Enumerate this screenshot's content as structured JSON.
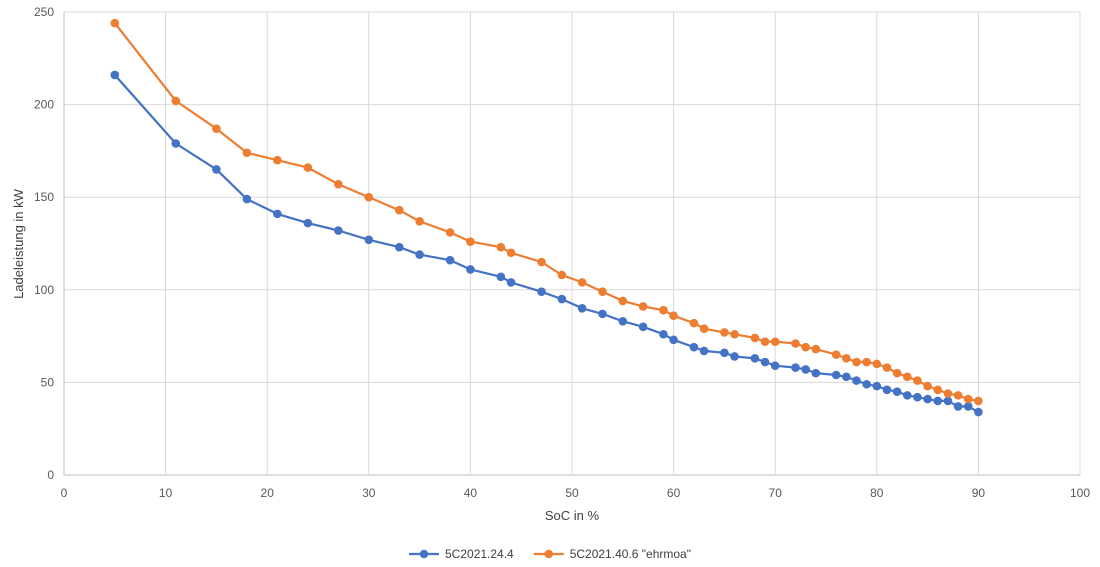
{
  "colors": {
    "series1": "#4472C4",
    "series2": "#ED7D31",
    "grid": "#d9d9d9"
  },
  "chart_data": {
    "type": "line",
    "title": "",
    "xlabel": "SoC in %",
    "ylabel": "Ladeleistung in kW",
    "xlim": [
      0,
      100
    ],
    "ylim": [
      0,
      250
    ],
    "xticks": [
      0,
      10,
      20,
      30,
      40,
      50,
      60,
      70,
      80,
      90,
      100
    ],
    "yticks": [
      0,
      50,
      100,
      150,
      200,
      250
    ],
    "grid": true,
    "legend_position": "bottom",
    "series": [
      {
        "name": "5C2021.24.4",
        "color": "#4472C4",
        "points": [
          [
            5,
            216
          ],
          [
            11,
            179
          ],
          [
            15,
            165
          ],
          [
            18,
            149
          ],
          [
            21,
            141
          ],
          [
            24,
            136
          ],
          [
            27,
            132
          ],
          [
            30,
            127
          ],
          [
            33,
            123
          ],
          [
            35,
            119
          ],
          [
            38,
            116
          ],
          [
            40,
            111
          ],
          [
            43,
            107
          ],
          [
            44,
            104
          ],
          [
            47,
            99
          ],
          [
            49,
            95
          ],
          [
            51,
            90
          ],
          [
            53,
            87
          ],
          [
            55,
            83
          ],
          [
            57,
            80
          ],
          [
            59,
            76
          ],
          [
            60,
            73
          ],
          [
            62,
            69
          ],
          [
            63,
            67
          ],
          [
            65,
            66
          ],
          [
            66,
            64
          ],
          [
            68,
            63
          ],
          [
            69,
            61
          ],
          [
            70,
            59
          ],
          [
            72,
            58
          ],
          [
            73,
            57
          ],
          [
            74,
            55
          ],
          [
            76,
            54
          ],
          [
            77,
            53
          ],
          [
            78,
            51
          ],
          [
            79,
            49
          ],
          [
            80,
            48
          ],
          [
            81,
            46
          ],
          [
            82,
            45
          ],
          [
            83,
            43
          ],
          [
            84,
            42
          ],
          [
            85,
            41
          ],
          [
            86,
            40
          ],
          [
            87,
            40
          ],
          [
            88,
            37
          ],
          [
            89,
            37
          ],
          [
            90,
            34
          ]
        ]
      },
      {
        "name": "5C2021.40.6 \"ehrmoa\"",
        "color": "#ED7D31",
        "points": [
          [
            5,
            244
          ],
          [
            11,
            202
          ],
          [
            15,
            187
          ],
          [
            18,
            174
          ],
          [
            21,
            170
          ],
          [
            24,
            166
          ],
          [
            27,
            157
          ],
          [
            30,
            150
          ],
          [
            33,
            143
          ],
          [
            35,
            137
          ],
          [
            38,
            131
          ],
          [
            40,
            126
          ],
          [
            43,
            123
          ],
          [
            44,
            120
          ],
          [
            47,
            115
          ],
          [
            49,
            108
          ],
          [
            51,
            104
          ],
          [
            53,
            99
          ],
          [
            55,
            94
          ],
          [
            57,
            91
          ],
          [
            59,
            89
          ],
          [
            60,
            86
          ],
          [
            62,
            82
          ],
          [
            63,
            79
          ],
          [
            65,
            77
          ],
          [
            66,
            76
          ],
          [
            68,
            74
          ],
          [
            69,
            72
          ],
          [
            70,
            72
          ],
          [
            72,
            71
          ],
          [
            73,
            69
          ],
          [
            74,
            68
          ],
          [
            76,
            65
          ],
          [
            77,
            63
          ],
          [
            78,
            61
          ],
          [
            79,
            61
          ],
          [
            80,
            60
          ],
          [
            81,
            58
          ],
          [
            82,
            55
          ],
          [
            83,
            53
          ],
          [
            84,
            51
          ],
          [
            85,
            48
          ],
          [
            86,
            46
          ],
          [
            87,
            44
          ],
          [
            88,
            43
          ],
          [
            89,
            41
          ],
          [
            90,
            40
          ]
        ]
      }
    ]
  }
}
